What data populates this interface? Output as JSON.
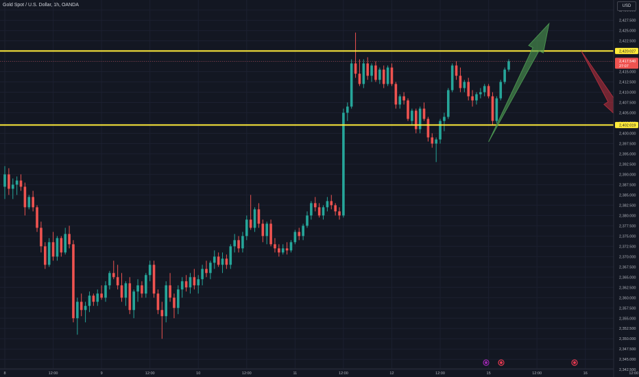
{
  "header": {
    "title": "Gold Spot / U.S. Dollar, 1h, OANDA",
    "currency": "USD"
  },
  "chart_data": {
    "type": "candlestick",
    "instrument": "Gold Spot / U.S. Dollar",
    "timeframe": "1h",
    "source": "OANDA",
    "ylim": [
      2341.2,
      2432.1
    ],
    "y_ticks": [
      "2,430.000",
      "2,427.500",
      "2,425.000",
      "2,422.500",
      "2,420.000",
      "2,417.500",
      "2,415.000",
      "2,412.500",
      "2,410.000",
      "2,407.500",
      "2,405.000",
      "2,402.500",
      "2,400.000",
      "2,397.500",
      "2,395.000",
      "2,392.500",
      "2,390.000",
      "2,387.500",
      "2,385.000",
      "2,382.500",
      "2,380.000",
      "2,377.500",
      "2,375.000",
      "2,372.500",
      "2,370.000",
      "2,367.500",
      "2,365.000",
      "2,362.500",
      "2,360.000",
      "2,357.500",
      "2,355.000",
      "2,352.500",
      "2,350.000",
      "2,347.500",
      "2,345.000",
      "2,342.500"
    ],
    "x_ticks": [
      {
        "label": "8",
        "idx": 0
      },
      {
        "label": "12:00",
        "idx": 12
      },
      {
        "label": "9",
        "idx": 24
      },
      {
        "label": "12:00",
        "idx": 36
      },
      {
        "label": "10",
        "idx": 48
      },
      {
        "label": "12:00",
        "idx": 60
      },
      {
        "label": "11",
        "idx": 72
      },
      {
        "label": "12:00",
        "idx": 84
      },
      {
        "label": "12",
        "idx": 96
      },
      {
        "label": "12:00",
        "idx": 108
      },
      {
        "label": "15",
        "idx": 120
      },
      {
        "label": "12:00",
        "idx": 132
      },
      {
        "label": "16",
        "idx": 144
      },
      {
        "label": "12:00",
        "idx": 156
      }
    ],
    "candles": [
      [
        2387.0,
        2392.0,
        2384.0,
        2390.0
      ],
      [
        2390.0,
        2391.5,
        2385.0,
        2386.5
      ],
      [
        2386.5,
        2389.0,
        2384.0,
        2387.5
      ],
      [
        2387.5,
        2389.5,
        2385.0,
        2388.5
      ],
      [
        2388.5,
        2390.0,
        2386.0,
        2387.0
      ],
      [
        2387.0,
        2388.0,
        2380.0,
        2382.0
      ],
      [
        2382.0,
        2385.0,
        2381.5,
        2384.5
      ],
      [
        2384.5,
        2386.0,
        2381.0,
        2382.0
      ],
      [
        2382.0,
        2382.5,
        2376.0,
        2377.0
      ],
      [
        2377.0,
        2378.5,
        2371.0,
        2372.5
      ],
      [
        2372.5,
        2373.5,
        2367.0,
        2368.0
      ],
      [
        2368.0,
        2374.5,
        2367.5,
        2373.5
      ],
      [
        2373.5,
        2376.0,
        2369.0,
        2370.0
      ],
      [
        2370.0,
        2375.0,
        2369.0,
        2374.5
      ],
      [
        2374.5,
        2375.0,
        2370.0,
        2371.0
      ],
      [
        2371.0,
        2377.0,
        2370.5,
        2375.5
      ],
      [
        2375.5,
        2377.5,
        2372.0,
        2373.0
      ],
      [
        2373.0,
        2374.0,
        2354.0,
        2355.0
      ],
      [
        2355.0,
        2360.0,
        2351.0,
        2359.0
      ],
      [
        2359.0,
        2361.0,
        2355.5,
        2357.0
      ],
      [
        2357.0,
        2359.0,
        2354.0,
        2358.0
      ],
      [
        2358.0,
        2361.5,
        2356.5,
        2360.5
      ],
      [
        2360.5,
        2361.0,
        2358.0,
        2359.0
      ],
      [
        2359.0,
        2362.0,
        2358.0,
        2361.0
      ],
      [
        2361.0,
        2363.0,
        2359.5,
        2360.0
      ],
      [
        2360.0,
        2364.0,
        2359.0,
        2363.0
      ],
      [
        2363.0,
        2366.5,
        2362.0,
        2366.0
      ],
      [
        2366.0,
        2369.0,
        2364.5,
        2365.0
      ],
      [
        2365.0,
        2368.0,
        2362.0,
        2363.0
      ],
      [
        2363.0,
        2366.0,
        2359.0,
        2360.0
      ],
      [
        2360.0,
        2364.0,
        2358.0,
        2363.5
      ],
      [
        2363.5,
        2365.0,
        2356.0,
        2357.0
      ],
      [
        2357.0,
        2362.0,
        2355.0,
        2361.5
      ],
      [
        2361.5,
        2364.5,
        2359.0,
        2363.0
      ],
      [
        2363.0,
        2364.0,
        2360.0,
        2361.0
      ],
      [
        2361.0,
        2366.0,
        2360.0,
        2365.5
      ],
      [
        2365.5,
        2369.0,
        2364.0,
        2368.0
      ],
      [
        2368.0,
        2369.0,
        2360.0,
        2361.0
      ],
      [
        2361.0,
        2362.0,
        2356.0,
        2357.0
      ],
      [
        2357.0,
        2359.0,
        2350.0,
        2355.5
      ],
      [
        2355.5,
        2364.0,
        2354.0,
        2363.0
      ],
      [
        2363.0,
        2366.0,
        2359.0,
        2360.0
      ],
      [
        2360.0,
        2361.0,
        2355.0,
        2357.5
      ],
      [
        2357.5,
        2363.0,
        2356.0,
        2362.0
      ],
      [
        2362.0,
        2365.0,
        2360.0,
        2364.0
      ],
      [
        2364.0,
        2365.5,
        2361.5,
        2362.5
      ],
      [
        2362.5,
        2366.0,
        2361.0,
        2365.0
      ],
      [
        2365.0,
        2367.0,
        2362.0,
        2363.0
      ],
      [
        2363.0,
        2365.5,
        2361.0,
        2364.5
      ],
      [
        2364.5,
        2368.0,
        2363.0,
        2367.0
      ],
      [
        2367.0,
        2369.0,
        2365.0,
        2366.0
      ],
      [
        2366.0,
        2369.0,
        2364.5,
        2368.5
      ],
      [
        2368.5,
        2371.5,
        2367.0,
        2370.0
      ],
      [
        2370.0,
        2371.0,
        2367.5,
        2368.0
      ],
      [
        2368.0,
        2371.0,
        2366.0,
        2369.5
      ],
      [
        2369.5,
        2370.5,
        2367.0,
        2368.0
      ],
      [
        2368.0,
        2373.0,
        2367.0,
        2372.5
      ],
      [
        2372.5,
        2375.5,
        2371.0,
        2374.0
      ],
      [
        2374.0,
        2375.0,
        2371.0,
        2372.0
      ],
      [
        2372.0,
        2376.0,
        2371.0,
        2375.0
      ],
      [
        2375.0,
        2380.0,
        2374.0,
        2379.0
      ],
      [
        2379.0,
        2385.0,
        2376.5,
        2377.0
      ],
      [
        2377.0,
        2382.0,
        2376.0,
        2381.5
      ],
      [
        2381.5,
        2383.0,
        2377.0,
        2378.0
      ],
      [
        2378.0,
        2379.0,
        2373.5,
        2375.0
      ],
      [
        2375.0,
        2378.5,
        2373.0,
        2378.0
      ],
      [
        2378.0,
        2379.0,
        2372.5,
        2373.0
      ],
      [
        2373.0,
        2374.5,
        2371.0,
        2372.0
      ],
      [
        2372.0,
        2373.0,
        2370.0,
        2371.0
      ],
      [
        2371.0,
        2373.0,
        2370.5,
        2372.0
      ],
      [
        2372.0,
        2373.5,
        2370.5,
        2371.5
      ],
      [
        2371.5,
        2374.0,
        2371.0,
        2373.5
      ],
      [
        2373.5,
        2376.5,
        2373.0,
        2376.0
      ],
      [
        2376.0,
        2377.0,
        2374.0,
        2375.0
      ],
      [
        2375.0,
        2378.0,
        2374.0,
        2377.5
      ],
      [
        2377.5,
        2381.0,
        2377.0,
        2380.0
      ],
      [
        2380.0,
        2383.5,
        2379.0,
        2383.0
      ],
      [
        2383.0,
        2384.5,
        2381.0,
        2382.0
      ],
      [
        2382.0,
        2383.0,
        2379.5,
        2380.0
      ],
      [
        2380.0,
        2382.5,
        2379.0,
        2382.0
      ],
      [
        2382.0,
        2384.5,
        2381.0,
        2383.5
      ],
      [
        2383.5,
        2385.0,
        2381.5,
        2382.5
      ],
      [
        2382.5,
        2383.0,
        2380.0,
        2381.0
      ],
      [
        2381.0,
        2382.0,
        2379.0,
        2380.0
      ],
      [
        2380.0,
        2406.0,
        2379.5,
        2405.0
      ],
      [
        2405.0,
        2407.5,
        2403.0,
        2406.5
      ],
      [
        2406.5,
        2418.0,
        2406.0,
        2417.0
      ],
      [
        2417.0,
        2424.5,
        2413.5,
        2414.5
      ],
      [
        2414.5,
        2418.0,
        2411.5,
        2412.0
      ],
      [
        2412.0,
        2418.0,
        2411.0,
        2417.0
      ],
      [
        2417.0,
        2418.5,
        2413.0,
        2414.0
      ],
      [
        2414.0,
        2417.0,
        2412.5,
        2416.5
      ],
      [
        2416.5,
        2417.5,
        2412.5,
        2413.0
      ],
      [
        2413.0,
        2416.0,
        2412.0,
        2415.5
      ],
      [
        2415.5,
        2416.5,
        2411.0,
        2412.0
      ],
      [
        2412.0,
        2416.5,
        2411.5,
        2416.0
      ],
      [
        2416.0,
        2417.0,
        2411.5,
        2412.0
      ],
      [
        2412.0,
        2412.5,
        2406.0,
        2407.0
      ],
      [
        2407.0,
        2409.5,
        2406.0,
        2409.0
      ],
      [
        2409.0,
        2410.0,
        2407.0,
        2408.0
      ],
      [
        2408.0,
        2408.5,
        2403.0,
        2403.5
      ],
      [
        2403.0,
        2406.0,
        2402.0,
        2405.5
      ],
      [
        2405.5,
        2406.0,
        2400.0,
        2401.0
      ],
      [
        2401.0,
        2406.5,
        2400.0,
        2406.0
      ],
      [
        2406.0,
        2407.5,
        2403.0,
        2403.5
      ],
      [
        2403.5,
        2404.0,
        2398.0,
        2399.0
      ],
      [
        2399.0,
        2400.0,
        2396.5,
        2397.5
      ],
      [
        2397.5,
        2399.0,
        2393.0,
        2398.5
      ],
      [
        2398.5,
        2403.5,
        2397.5,
        2403.0
      ],
      [
        2403.0,
        2405.0,
        2400.5,
        2404.0
      ],
      [
        2404.0,
        2411.0,
        2403.5,
        2410.5
      ],
      [
        2410.5,
        2417.0,
        2410.0,
        2416.5
      ],
      [
        2416.5,
        2417.5,
        2413.0,
        2414.0
      ],
      [
        2414.0,
        2416.0,
        2410.0,
        2411.0
      ],
      [
        2411.0,
        2413.0,
        2410.0,
        2412.5
      ],
      [
        2412.5,
        2413.5,
        2408.0,
        2409.0
      ],
      [
        2409.0,
        2410.5,
        2406.5,
        2408.0
      ],
      [
        2408.0,
        2410.0,
        2407.0,
        2409.5
      ],
      [
        2409.5,
        2411.0,
        2408.5,
        2410.0
      ],
      [
        2410.0,
        2412.0,
        2409.0,
        2411.5
      ],
      [
        2411.5,
        2412.0,
        2408.5,
        2409.0
      ],
      [
        2409.0,
        2410.0,
        2402.0,
        2403.0
      ],
      [
        2403.0,
        2409.0,
        2402.5,
        2408.5
      ],
      [
        2408.5,
        2413.0,
        2408.0,
        2412.5
      ],
      [
        2412.5,
        2416.0,
        2412.0,
        2415.5
      ],
      [
        2415.5,
        2418.0,
        2415.0,
        2417.54
      ]
    ],
    "levels": [
      {
        "price": 2420.027,
        "label": "2,420.027"
      },
      {
        "price": 2402.019,
        "label": "2,402.019"
      }
    ],
    "last_price": {
      "price": 2417.54,
      "label": "2,417.540",
      "countdown": "27:07"
    },
    "arrows": [
      {
        "direction": "up",
        "from": {
          "idx": 120,
          "price": 2397.9
        },
        "to": {
          "idx": 135,
          "price": 2426.7
        },
        "color": "#4c9a52"
      },
      {
        "direction": "down",
        "from": {
          "idx": 143,
          "price": 2420.0
        },
        "to": {
          "idx": 154,
          "price": 2402.2
        },
        "color": "#b22f3e"
      }
    ],
    "colors": {
      "up": "#26a69a",
      "down": "#ef5350",
      "level": "#ffeb3b",
      "background": "#131722"
    }
  }
}
